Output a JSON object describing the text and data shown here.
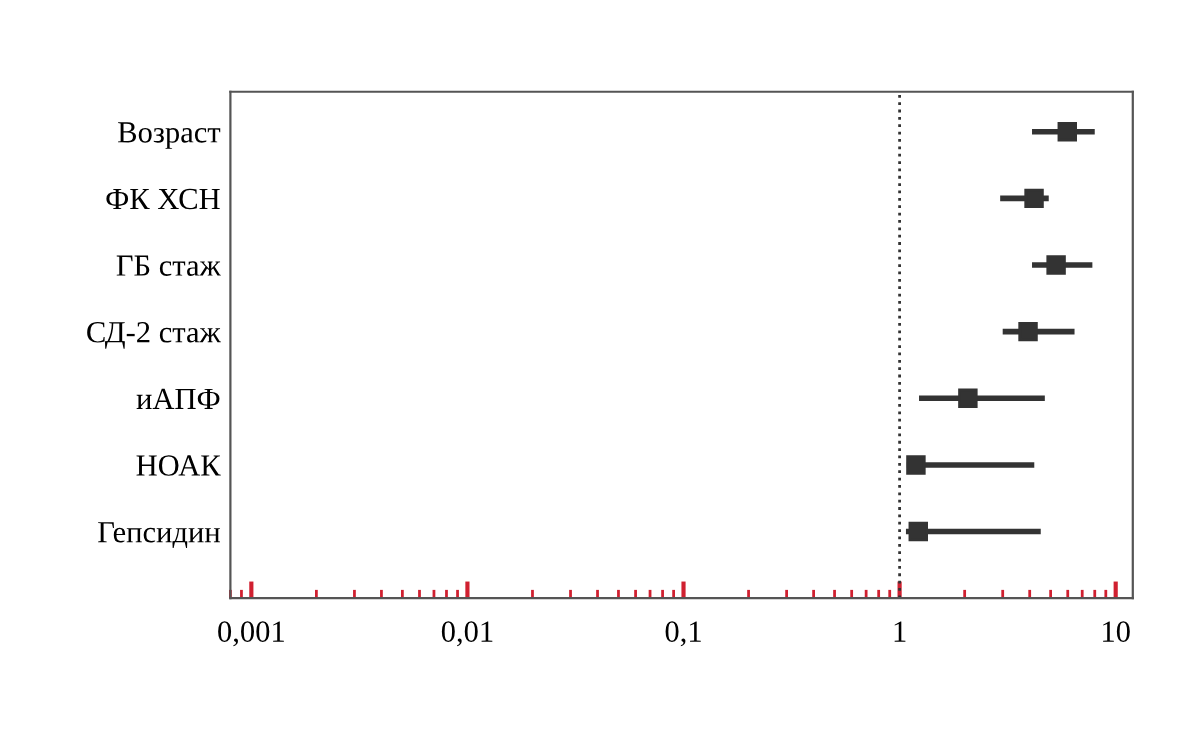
{
  "chart_data": {
    "type": "scatter",
    "orientation": "horizontal",
    "log": "x",
    "marker": "square",
    "grid": false,
    "categories": [
      "Возраст",
      "ФК ХСН",
      "ГБ стаж",
      "СД-2 стаж",
      "иАПФ",
      "НОАК",
      "Гепсидин"
    ],
    "series": [
      {
        "color": "#333333",
        "values": [
          5.97,
          4.19,
          5.3,
          3.93,
          2.07,
          1.19,
          1.22
        ],
        "errors": [
          [
            4.1,
            8.0
          ],
          [
            2.92,
            4.9
          ],
          [
            4.1,
            7.8
          ],
          [
            3.0,
            6.45
          ],
          [
            1.23,
            4.7
          ],
          [
            1.08,
            4.2
          ],
          [
            1.07,
            4.5
          ]
        ]
      }
    ],
    "xlim": [
      0.0008,
      12
    ],
    "xticks": [
      {
        "value": 0.001,
        "label": "0,001"
      },
      {
        "value": 0.01,
        "label": "0,01"
      },
      {
        "value": 0.1,
        "label": "0,1"
      },
      1,
      10
    ],
    "ref_lines": [
      {
        "axis": "x",
        "value": 1,
        "color": "#333333",
        "line_style": "dotted"
      }
    ]
  }
}
